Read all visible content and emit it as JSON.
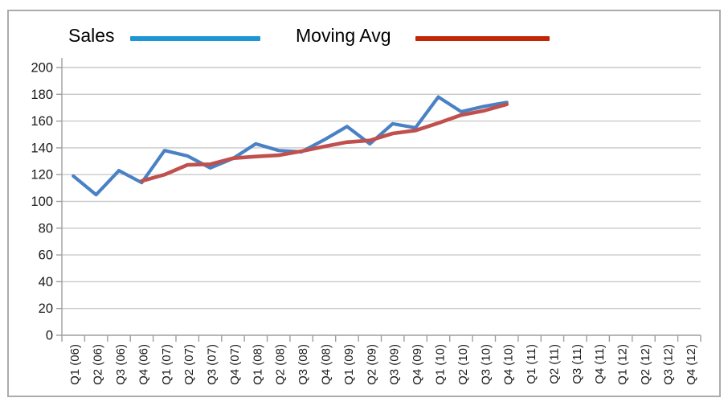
{
  "legend": {
    "items": [
      {
        "label": "Sales",
        "swatch_color": "#1e95d4",
        "swatch_name": "sales-line-swatch"
      },
      {
        "label": "Moving Avg",
        "swatch_color": "#c32604",
        "swatch_name": "moving-avg-line-swatch"
      }
    ]
  },
  "colors": {
    "gridline": "#c9c9c9",
    "axis": "#9e9e9e",
    "tick": "#9e9e9e",
    "label_text": "#1a1a1a",
    "frame_border": "#ababab",
    "background": "#ffffff"
  },
  "chart_data": {
    "type": "line",
    "title": "",
    "xlabel": "",
    "ylabel": "",
    "ylim": [
      0,
      200
    ],
    "yticks": [
      0,
      20,
      40,
      60,
      80,
      100,
      120,
      140,
      160,
      180,
      200
    ],
    "grid": true,
    "legend_position": "top",
    "categories": [
      "Q1 (06)",
      "Q2 (06)",
      "Q3 (06)",
      "Q4 (06)",
      "Q1 (07)",
      "Q2 (07)",
      "Q3 (07)",
      "Q4 (07)",
      "Q1 (08)",
      "Q2 (08)",
      "Q3 (08)",
      "Q4 (08)",
      "Q1 (09)",
      "Q2 (09)",
      "Q3 (09)",
      "Q4 (09)",
      "Q1 (10)",
      "Q2 (10)",
      "Q3 (10)",
      "Q4 (10)",
      "Q1 (11)",
      "Q2 (11)",
      "Q3 (11)",
      "Q4 (11)",
      "Q1 (12)",
      "Q2 (12)",
      "Q3 (12)",
      "Q4 (12)"
    ],
    "series": [
      {
        "name": "Sales",
        "color": "#4a81c4",
        "stroke_width": 4.2,
        "values": [
          119,
          105,
          123,
          114,
          138,
          134,
          125,
          132,
          143,
          138,
          137,
          146,
          156,
          143,
          158,
          155,
          178,
          167,
          171,
          174,
          null,
          null,
          null,
          null,
          null,
          null,
          null,
          null
        ]
      },
      {
        "name": "Moving Avg",
        "color": "#c0504d",
        "stroke_width": 4.6,
        "values": [
          null,
          null,
          null,
          115.25,
          120,
          127.25,
          127.75,
          132.25,
          133.5,
          134.5,
          137.5,
          141,
          144.25,
          145.5,
          150.75,
          153,
          158.5,
          164.5,
          167.75,
          172.5,
          null,
          null,
          null,
          null,
          null,
          null,
          null,
          null
        ]
      }
    ]
  }
}
